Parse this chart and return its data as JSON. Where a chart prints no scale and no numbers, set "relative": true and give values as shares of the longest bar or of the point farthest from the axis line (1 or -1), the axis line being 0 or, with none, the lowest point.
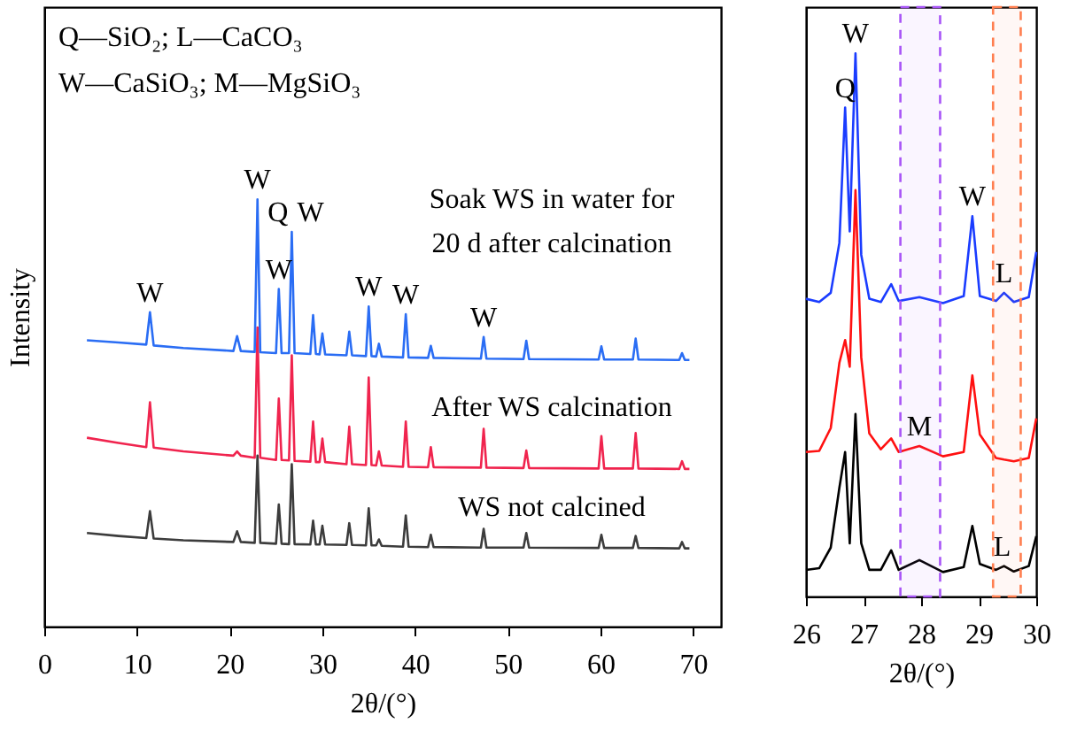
{
  "chart_data": [
    {
      "type": "line",
      "xlabel": "2θ/(°)",
      "ylabel": "Intensity",
      "relative": true,
      "xlim": [
        0,
        73
      ],
      "xticks": [
        0,
        10,
        20,
        30,
        40,
        50,
        60,
        70
      ],
      "tick_labels": "x",
      "grid": false,
      "legend": false,
      "marker": "none",
      "line_style": "solid",
      "x": [
        4.6,
        8,
        11.0,
        11.4,
        11.8,
        15,
        20.4,
        20.8,
        21.2,
        22.7,
        23.0,
        23.3,
        25.0,
        25.3,
        25.6,
        26.4,
        26.7,
        27.0,
        28.7,
        29.0,
        29.3,
        29.7,
        30.0,
        30.3,
        32.6,
        32.9,
        33.2,
        34.7,
        35.0,
        35.3,
        35.8,
        36.1,
        36.4,
        38.7,
        39.0,
        39.3,
        41.4,
        41.7,
        42.0,
        47.1,
        47.4,
        47.7,
        51.7,
        52.0,
        52.3,
        59.8,
        60.1,
        60.4,
        63.5,
        63.8,
        64.1,
        68.5,
        68.8,
        69.1,
        69.6
      ],
      "series": [
        {
          "name": "WS not calcined",
          "color": "#3c3c3c",
          "values": [
            0.219,
            0.212,
            0.207,
            0.27,
            0.206,
            0.202,
            0.198,
            0.223,
            0.198,
            0.196,
            0.4,
            0.196,
            0.194,
            0.286,
            0.194,
            0.193,
            0.38,
            0.193,
            0.192,
            0.248,
            0.192,
            0.192,
            0.236,
            0.192,
            0.191,
            0.242,
            0.191,
            0.19,
            0.277,
            0.19,
            0.19,
            0.204,
            0.189,
            0.187,
            0.26,
            0.187,
            0.186,
            0.215,
            0.186,
            0.185,
            0.229,
            0.185,
            0.185,
            0.219,
            0.185,
            0.184,
            0.215,
            0.184,
            0.184,
            0.212,
            0.184,
            0.183,
            0.198,
            0.183,
            0.183
          ]
        },
        {
          "name": "After WS calcination",
          "color": "#f0244e",
          "values": [
            0.442,
            0.43,
            0.42,
            0.525,
            0.419,
            0.41,
            0.4,
            0.41,
            0.4,
            0.395,
            0.7,
            0.395,
            0.39,
            0.534,
            0.39,
            0.389,
            0.635,
            0.388,
            0.386,
            0.48,
            0.385,
            0.385,
            0.44,
            0.385,
            0.38,
            0.468,
            0.38,
            0.378,
            0.583,
            0.378,
            0.377,
            0.41,
            0.377,
            0.374,
            0.48,
            0.374,
            0.373,
            0.42,
            0.373,
            0.372,
            0.463,
            0.372,
            0.371,
            0.412,
            0.371,
            0.37,
            0.446,
            0.37,
            0.37,
            0.453,
            0.37,
            0.369,
            0.387,
            0.369,
            0.369
          ]
        },
        {
          "name": "Soak WS in water for\n20 d after calcination",
          "color": "#2a6df4",
          "values": [
            0.67,
            0.665,
            0.66,
            0.736,
            0.658,
            0.652,
            0.645,
            0.68,
            0.645,
            0.643,
            1.0,
            0.642,
            0.64,
            0.79,
            0.64,
            0.64,
            0.924,
            0.64,
            0.638,
            0.729,
            0.638,
            0.637,
            0.686,
            0.637,
            0.635,
            0.69,
            0.635,
            0.633,
            0.749,
            0.633,
            0.632,
            0.662,
            0.632,
            0.63,
            0.731,
            0.63,
            0.629,
            0.657,
            0.629,
            0.627,
            0.678,
            0.627,
            0.626,
            0.669,
            0.626,
            0.625,
            0.656,
            0.625,
            0.625,
            0.674,
            0.625,
            0.624,
            0.64,
            0.624,
            0.624
          ]
        }
      ],
      "annotations": [
        "Q—SiO₂; L—CaCO₃",
        "W—CaSiO₃; M—MgSiO₃",
        {
          "text": "W",
          "x": 11.4,
          "y": 0.736
        },
        {
          "text": "W",
          "x": 23.0,
          "y": 1.0
        },
        {
          "text": "W",
          "x": 25.3,
          "y": 0.79
        },
        {
          "text": "Q",
          "x": 26.7,
          "y": 0.924
        },
        {
          "text": "W",
          "x": 26.7,
          "y": 0.924
        },
        {
          "text": "W",
          "x": 35.0,
          "y": 0.749
        },
        {
          "text": "W",
          "x": 39.0,
          "y": 0.731
        },
        {
          "text": "W",
          "x": 47.4,
          "y": 0.678
        }
      ]
    },
    {
      "type": "line",
      "xlabel": "2θ/(°)",
      "relative": true,
      "xlim": [
        26,
        30
      ],
      "xticks": [
        26,
        27,
        28,
        29,
        30
      ],
      "tick_labels": "x",
      "grid": false,
      "legend": false,
      "marker": "none",
      "line_style": "solid",
      "x": [
        26,
        26.23,
        26.43,
        26.58,
        26.68,
        26.76,
        26.86,
        26.96,
        27.1,
        27.3,
        27.48,
        27.61,
        27.97,
        28.38,
        28.74,
        28.89,
        29.02,
        29.3,
        29.44,
        29.61,
        29.87,
        30
      ],
      "series": [
        {
          "color": "#000000",
          "values": [
            0.049,
            0.052,
            0.09,
            0.2,
            0.266,
            0.098,
            0.336,
            0.098,
            0.049,
            0.049,
            0.085,
            0.049,
            0.067,
            0.045,
            0.054,
            0.13,
            0.06,
            0.049,
            0.056,
            0.046,
            0.056,
            0.111
          ]
        },
        {
          "color": "#ff1010",
          "values": [
            0.266,
            0.268,
            0.31,
            0.43,
            0.472,
            0.423,
            0.748,
            0.44,
            0.3,
            0.271,
            0.291,
            0.266,
            0.277,
            0.258,
            0.266,
            0.407,
            0.298,
            0.255,
            0.252,
            0.249,
            0.255,
            0.328
          ]
        },
        {
          "color": "#1a3cff",
          "values": [
            0.548,
            0.542,
            0.559,
            0.651,
            0.9,
            0.672,
            1.0,
            0.629,
            0.548,
            0.542,
            0.575,
            0.544,
            0.551,
            0.54,
            0.553,
            0.7,
            0.553,
            0.544,
            0.559,
            0.542,
            0.551,
            0.634
          ]
        }
      ],
      "bands": [
        {
          "axis": "x",
          "from": 27.64,
          "to": 28.33,
          "color": "#a855f7"
        },
        {
          "axis": "x",
          "from": 29.25,
          "to": 29.73,
          "color": "#ff7f50"
        }
      ],
      "annotations": [
        {
          "text": "Q",
          "x": 26.68,
          "y": 0.9
        },
        {
          "text": "W",
          "x": 26.86,
          "y": 1.0
        },
        {
          "text": "W",
          "x": 28.89,
          "y": 0.7
        },
        {
          "text": "L",
          "x": 29.44,
          "y": 0.559
        },
        {
          "text": "M",
          "x": 27.97,
          "y": 0.277
        },
        {
          "text": "L",
          "x": 29.41,
          "y": 0.056
        }
      ]
    }
  ]
}
